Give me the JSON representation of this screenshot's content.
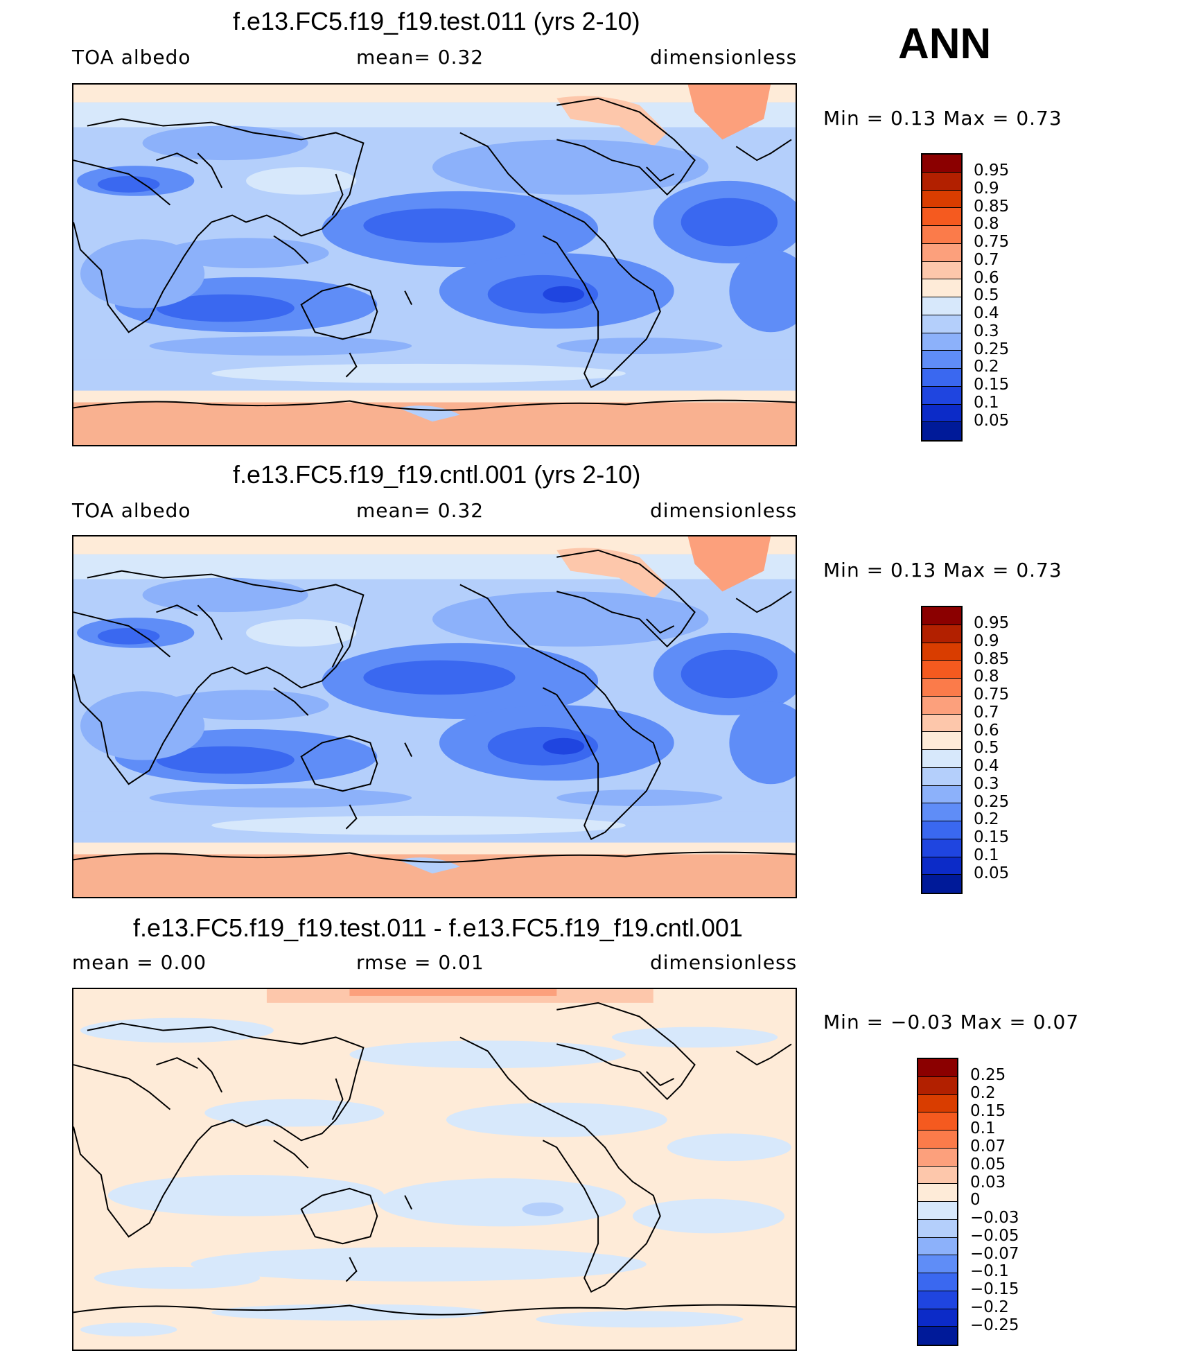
{
  "season": "ANN",
  "panels": [
    {
      "title": "f.e13.FC5.f19_f19.test.011 (yrs 2-10)",
      "left_label": "TOA  albedo",
      "center_label": "mean=    0.32",
      "right_label": "dimensionless",
      "minmax": "Min  =     0.13  Max  =     0.73",
      "colorbar": {
        "labels": [
          "0.95",
          "0.9",
          "0.85",
          "0.8",
          "0.75",
          "0.7",
          "0.6",
          "0.5",
          "0.4",
          "0.3",
          "0.25",
          "0.2",
          "0.15",
          "0.1",
          "0.05"
        ],
        "colors": [
          "#8b0000",
          "#b22000",
          "#d93d00",
          "#f55a1f",
          "#fb7b4a",
          "#fca07c",
          "#fdc7ab",
          "#feebd8",
          "#d7e8fb",
          "#b4cffb",
          "#8cb1fa",
          "#5f8df7",
          "#3a68f0",
          "#1f45e0",
          "#0c2bc8",
          "#001a99"
        ]
      }
    },
    {
      "title": "f.e13.FC5.f19_f19.cntl.001 (yrs 2-10)",
      "left_label": "TOA  albedo",
      "center_label": "mean=    0.32",
      "right_label": "dimensionless",
      "minmax": "Min  =     0.13  Max  =     0.73",
      "colorbar": {
        "labels": [
          "0.95",
          "0.9",
          "0.85",
          "0.8",
          "0.75",
          "0.7",
          "0.6",
          "0.5",
          "0.4",
          "0.3",
          "0.25",
          "0.2",
          "0.15",
          "0.1",
          "0.05"
        ],
        "colors": [
          "#8b0000",
          "#b22000",
          "#d93d00",
          "#f55a1f",
          "#fb7b4a",
          "#fca07c",
          "#fdc7ab",
          "#feebd8",
          "#d7e8fb",
          "#b4cffb",
          "#8cb1fa",
          "#5f8df7",
          "#3a68f0",
          "#1f45e0",
          "#0c2bc8",
          "#001a99"
        ]
      }
    },
    {
      "title": "f.e13.FC5.f19_f19.test.011 - f.e13.FC5.f19_f19.cntl.001",
      "left_label": "mean  =     0.00",
      "center_label": "rmse  =     0.01",
      "right_label": "dimensionless",
      "minmax": "Min  =    −0.03  Max  =     0.07",
      "colorbar": {
        "labels": [
          "0.25",
          "0.2",
          "0.15",
          "0.1",
          "0.07",
          "0.05",
          "0.03",
          "0",
          "−0.03",
          "−0.05",
          "−0.07",
          "−0.1",
          "−0.15",
          "−0.2",
          "−0.25"
        ],
        "colors": [
          "#8b0000",
          "#b22000",
          "#d93d00",
          "#f55a1f",
          "#fb7b4a",
          "#fca07c",
          "#fdc7ab",
          "#feebd8",
          "#d7e8fb",
          "#b4cffb",
          "#8cb1fa",
          "#5f8df7",
          "#3a68f0",
          "#1f45e0",
          "#0c2bc8",
          "#001a99"
        ]
      }
    }
  ],
  "colors": {
    "ice_salmon": "#f9b190",
    "cream": "#feebd8",
    "light_blue": "#d7e8fb",
    "mid_blue": "#b4cffb",
    "blue": "#8cb1fa",
    "dark_blue": "#5f8df7",
    "deep_blue": "#3a68f0"
  }
}
